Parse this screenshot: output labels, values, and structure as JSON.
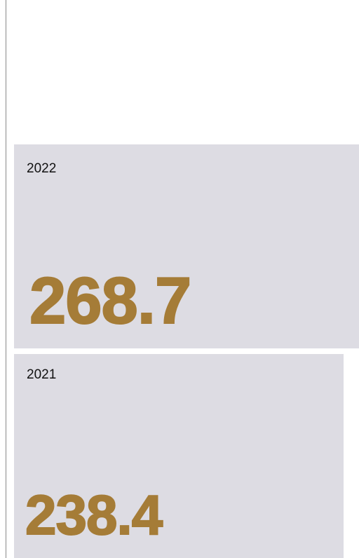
{
  "cards": [
    {
      "year": "2022",
      "value": "268.7"
    },
    {
      "year": "2021",
      "value": "238.4"
    }
  ]
}
